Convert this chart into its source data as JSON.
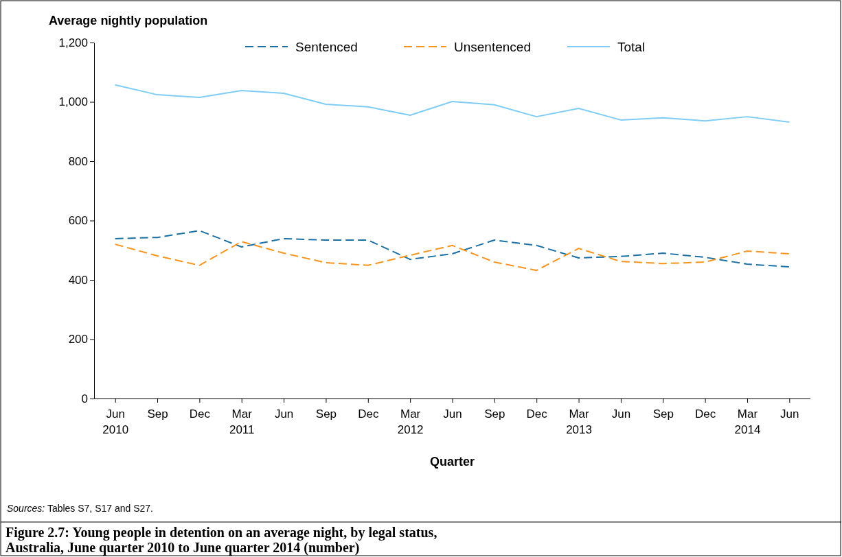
{
  "chart_data": {
    "type": "line",
    "title": "Figure 2.7: Young people in detention on an average night, by legal status, Australia, June quarter 2010 to June quarter 2014 (number)",
    "xlabel": "Quarter",
    "ylabel": "Average nightly population",
    "annotations": [
      "Sources: Tables S7, S17 and S27."
    ],
    "categories": [
      "Jun\n2010",
      "Sep",
      "Dec",
      "Mar\n2011",
      "Jun",
      "Sep",
      "Dec",
      "Mar\n2012",
      "Jun",
      "Sep",
      "Dec",
      "Mar\n2013",
      "Jun",
      "Sep",
      "Dec",
      "Mar\n2014",
      "Jun"
    ],
    "series": [
      {
        "name": "Sentenced",
        "color": "#1a6fa3",
        "line_style": "dashed",
        "values": [
          539,
          543,
          566,
          511,
          539,
          534,
          534,
          469,
          488,
          534,
          516,
          474,
          479,
          490,
          476,
          453,
          444
        ]
      },
      {
        "name": "Unsentenced",
        "color": "#f7941d",
        "line_style": "dashed",
        "values": [
          520,
          481,
          449,
          529,
          490,
          458,
          449,
          483,
          516,
          460,
          432,
          506,
          462,
          455,
          460,
          497,
          488
        ]
      },
      {
        "name": "Total",
        "color": "#7fcdf5",
        "line_style": "solid",
        "values": [
          1057,
          1024,
          1015,
          1038,
          1029,
          992,
          983,
          955,
          1001,
          990,
          950,
          978,
          939,
          946,
          936,
          950,
          932
        ]
      }
    ],
    "ylim": [
      0,
      1200
    ],
    "yticks": [
      0,
      200,
      400,
      600,
      800,
      {
        "value": 1000,
        "label": "1,000"
      },
      {
        "value": 1200,
        "label": "1,200"
      }
    ],
    "grid": false,
    "legend": "top",
    "marker": "none"
  }
}
